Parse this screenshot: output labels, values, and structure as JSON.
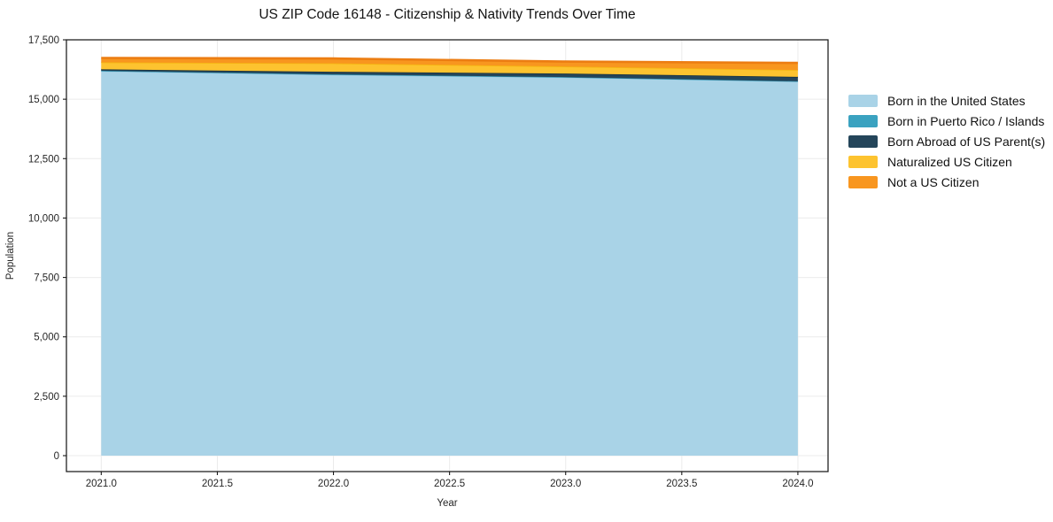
{
  "page": {
    "background": "#ffffff"
  },
  "chart_data": {
    "type": "area",
    "stacked": true,
    "title": "US ZIP Code 16148 - Citizenship & Nativity Trends Over Time",
    "xlabel": "Year",
    "ylabel": "Population",
    "x": [
      2021,
      2022,
      2023,
      2024
    ],
    "series": [
      {
        "name": "Born in the United States",
        "color": "#a9d3e7",
        "line_color": "#95c6dd",
        "values": [
          16180,
          16030,
          15920,
          15745
        ]
      },
      {
        "name": "Born in Puerto Rico / Islands",
        "color": "#3aa2c0",
        "line_color": "#2d93b1",
        "values": [
          15,
          15,
          10,
          10
        ]
      },
      {
        "name": "Born Abroad of US Parent(s)",
        "color": "#24455a",
        "line_color": "#16303f",
        "values": [
          60,
          110,
          150,
          185
        ]
      },
      {
        "name": "Naturalized US Citizen",
        "color": "#fdc32f",
        "line_color": "#f5b511",
        "values": [
          295,
          355,
          295,
          290
        ]
      },
      {
        "name": "Not a US Citizen",
        "color": "#f8961f",
        "line_color": "#ec7d12",
        "values": [
          185,
          205,
          210,
          300
        ]
      }
    ],
    "x_ticks": [
      {
        "v": 2021.0,
        "label": "2021.0"
      },
      {
        "v": 2021.5,
        "label": "2021.5"
      },
      {
        "v": 2022.0,
        "label": "2022.0"
      },
      {
        "v": 2022.5,
        "label": "2022.5"
      },
      {
        "v": 2023.0,
        "label": "2023.0"
      },
      {
        "v": 2023.5,
        "label": "2023.5"
      },
      {
        "v": 2024.0,
        "label": "2024.0"
      }
    ],
    "y_ticks": [
      {
        "v": 0,
        "label": "0"
      },
      {
        "v": 2500,
        "label": "2,500"
      },
      {
        "v": 5000,
        "label": "5,000"
      },
      {
        "v": 7500,
        "label": "7,500"
      },
      {
        "v": 10000,
        "label": "10,000"
      },
      {
        "v": 12500,
        "label": "12,500"
      },
      {
        "v": 15000,
        "label": "15,000"
      },
      {
        "v": 17500,
        "label": "17,500"
      }
    ],
    "xlim": [
      2020.85,
      2024.13
    ],
    "ylim": [
      -670,
      17500
    ],
    "grid": true,
    "legend_position": "right-outside"
  }
}
